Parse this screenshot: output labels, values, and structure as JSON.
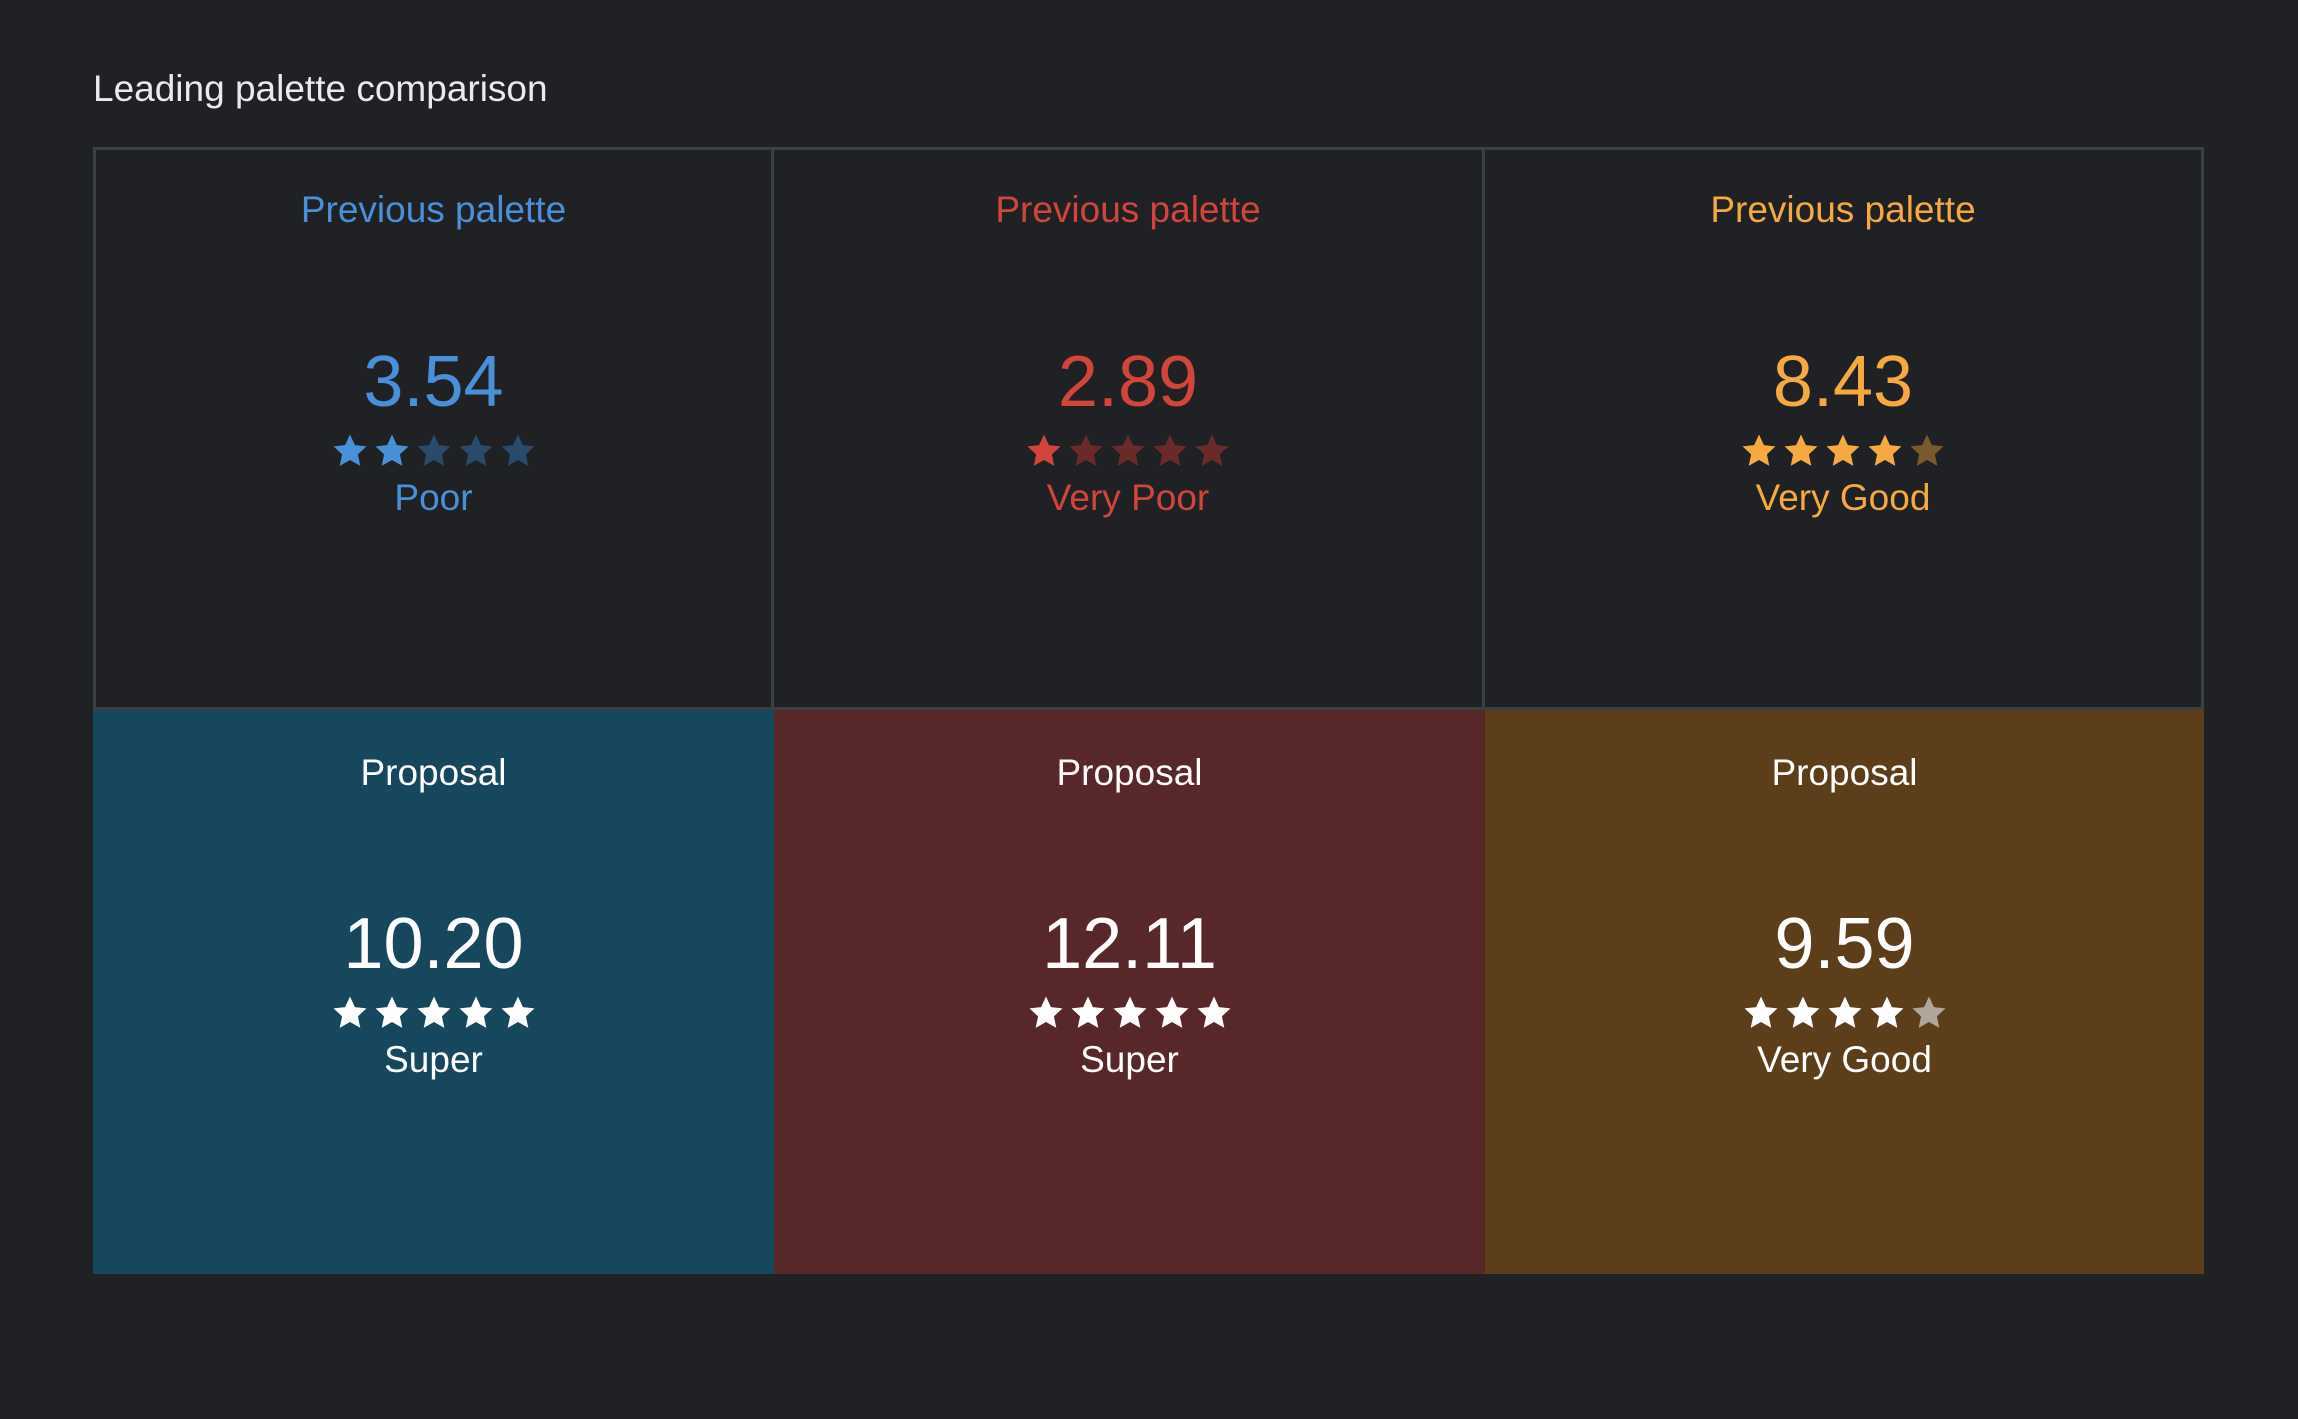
{
  "title": "Leading palette comparison",
  "columns": [
    {
      "previous": {
        "label": "Previous palette",
        "score": "3.54",
        "stars": 2,
        "rating": "Poor",
        "color": "#4a90d9",
        "star_dim": "#2a4a6c"
      },
      "proposal": {
        "label": "Proposal",
        "score": "10.20",
        "stars": 5,
        "rating": "Super",
        "background": "#17475c"
      }
    },
    {
      "previous": {
        "label": "Previous palette",
        "score": "2.89",
        "stars": 1,
        "rating": "Very Poor",
        "color": "#d2453a",
        "star_dim": "#6a2a2a"
      },
      "proposal": {
        "label": "Proposal",
        "score": "12.11",
        "stars": 5,
        "rating": "Super",
        "background": "#58272a"
      }
    },
    {
      "previous": {
        "label": "Previous palette",
        "score": "8.43",
        "stars": 4,
        "rating": "Very Good",
        "color": "#f5a941",
        "star_dim": "#7a5a2c"
      },
      "proposal": {
        "label": "Proposal",
        "score": "9.59",
        "stars": 4,
        "rating": "Very Good",
        "background": "#5c3f1a"
      }
    }
  ],
  "proposal_text_color": "#ffffff",
  "proposal_star_dim": "#b0a699"
}
